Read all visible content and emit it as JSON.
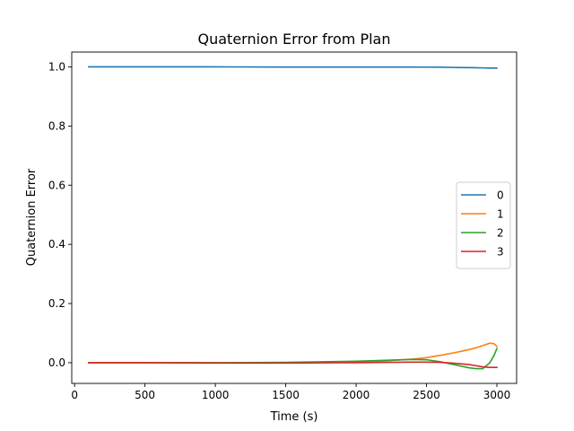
{
  "chart_data": {
    "type": "line",
    "title": "Quaternion Error from Plan",
    "xlabel": "Time (s)",
    "ylabel": "Quaternion Error",
    "xlim": [
      -20,
      3140
    ],
    "ylim": [
      -0.07,
      1.05
    ],
    "xticks": [
      0,
      500,
      1000,
      1500,
      2000,
      2500,
      3000
    ],
    "yticks": [
      0.0,
      0.2,
      0.4,
      0.6,
      0.8,
      1.0
    ],
    "xtick_labels": [
      "0",
      "500",
      "1000",
      "1500",
      "2000",
      "2500",
      "3000"
    ],
    "ytick_labels": [
      "0.0",
      "0.2",
      "0.4",
      "0.6",
      "0.8",
      "1.0"
    ],
    "grid": false,
    "legend_position": "center-right",
    "x": [
      100,
      500,
      1000,
      1500,
      2000,
      2200,
      2400,
      2500,
      2600,
      2700,
      2800,
      2850,
      2900,
      2950,
      2980,
      3000
    ],
    "series": [
      {
        "name": "0",
        "color": "#1f77b4",
        "values": [
          1.0,
          1.0,
          1.0,
          0.9995,
          0.9995,
          0.9994,
          0.9993,
          0.9992,
          0.999,
          0.998,
          0.9975,
          0.997,
          0.9965,
          0.996,
          0.9958,
          0.9956
        ]
      },
      {
        "name": "1",
        "color": "#ff7f0e",
        "values": [
          0.0,
          0.0,
          0.0,
          0.0,
          0.003,
          0.006,
          0.012,
          0.017,
          0.025,
          0.034,
          0.044,
          0.05,
          0.058,
          0.066,
          0.064,
          0.055
        ]
      },
      {
        "name": "2",
        "color": "#2ca02c",
        "values": [
          0.0,
          0.0,
          0.0,
          0.001,
          0.005,
          0.008,
          0.011,
          0.01,
          0.003,
          -0.007,
          -0.017,
          -0.02,
          -0.02,
          0.0,
          0.025,
          0.048
        ]
      },
      {
        "name": "3",
        "color": "#d62728",
        "values": [
          0.0,
          0.0,
          -0.001,
          -0.001,
          0.0,
          0.001,
          0.002,
          0.002,
          0.001,
          -0.002,
          -0.006,
          -0.01,
          -0.014,
          -0.016,
          -0.016,
          -0.016
        ]
      }
    ]
  }
}
